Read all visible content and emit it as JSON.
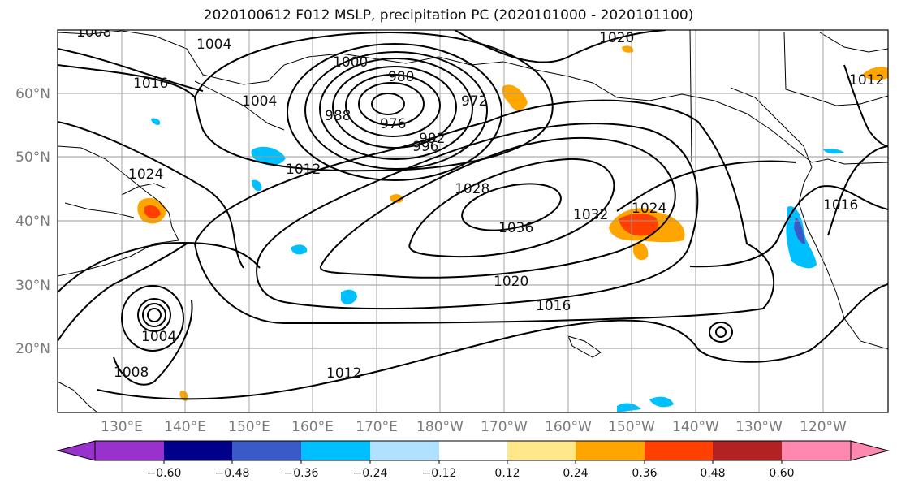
{
  "title": "2020100612 F012 MSLP, precipitation PC (2020101000 - 2020101100)",
  "map": {
    "lon_labels": [
      "130°E",
      "140°E",
      "150°E",
      "160°E",
      "170°E",
      "180°W",
      "170°W",
      "160°W",
      "150°W",
      "140°W",
      "130°W",
      "120°W"
    ],
    "lat_labels": [
      "60°N",
      "50°N",
      "40°N",
      "30°N",
      "20°N"
    ],
    "contour_labels": [
      "1008",
      "1004",
      "1016",
      "1024",
      "1004",
      "1000",
      "980",
      "976",
      "988",
      "972",
      "992",
      "996",
      "1012",
      "1028",
      "1036",
      "1032",
      "1024",
      "1020",
      "1016",
      "1012",
      "1004",
      "1008",
      "1020",
      "1012",
      "1016"
    ],
    "grid": true
  },
  "colorbar": {
    "ticks": [
      "−0.60",
      "−0.48",
      "−0.36",
      "−0.24",
      "−0.12",
      "0.12",
      "0.24",
      "0.36",
      "0.48",
      "0.60"
    ],
    "colors": [
      "#9932cc",
      "#00008b",
      "#3a5bc7",
      "#00bfff",
      "#b0e2ff",
      "#ffffff",
      "#ffe88a",
      "#ffa500",
      "#ff4000",
      "#b22222",
      "#ff88b0"
    ]
  }
}
